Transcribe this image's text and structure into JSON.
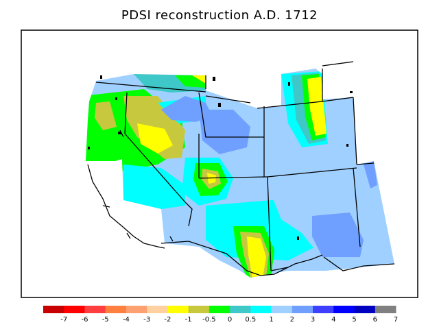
{
  "title": "PDSI reconstruction A.D. 1712",
  "legend": {
    "colors": [
      "#c80000",
      "#ff0000",
      "#ff3f3f",
      "#ff7f3f",
      "#ffa070",
      "#ffd0a0",
      "#ffff00",
      "#c8c83f",
      "#00ff00",
      "#3fc8c8",
      "#00ffff",
      "#a0d0ff",
      "#70a0ff",
      "#3f3fff",
      "#0000ff",
      "#0000c0",
      "#808080"
    ],
    "labels": [
      "-7",
      "-6",
      "-5",
      "-4",
      "-3",
      "-2",
      "-1",
      "-0.5",
      "0",
      "0.5",
      "1",
      "2",
      "3",
      "4",
      "5",
      "6",
      "7"
    ]
  },
  "map": {
    "region": "Western United States",
    "colors": {
      "ocean": "#ffffff",
      "frame": "#000000",
      "border": "#000000"
    }
  }
}
